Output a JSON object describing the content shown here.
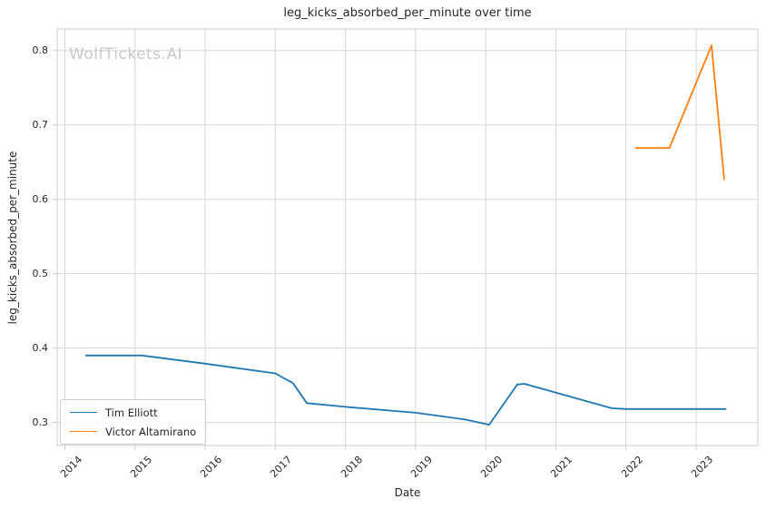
{
  "watermark": "WolfTickets.AI",
  "chart_data": {
    "type": "line",
    "title": "leg_kicks_absorbed_per_minute over time",
    "xlabel": "Date",
    "ylabel": "leg_kicks_absorbed_per_minute",
    "grid": true,
    "legend_position": "lower left",
    "xlim": [
      2013.89,
      2023.88
    ],
    "ylim": [
      0.269,
      0.829
    ],
    "x_ticks": [
      2014,
      2015,
      2016,
      2017,
      2018,
      2019,
      2020,
      2021,
      2022,
      2023
    ],
    "x_tick_labels": [
      "2014",
      "2015",
      "2016",
      "2017",
      "2018",
      "2019",
      "2020",
      "2021",
      "2022",
      "2023"
    ],
    "y_ticks": [
      0.3,
      0.4,
      0.5,
      0.6,
      0.7,
      0.8
    ],
    "y_tick_labels": [
      "0.3",
      "0.4",
      "0.5",
      "0.6",
      "0.7",
      "0.8"
    ],
    "series": [
      {
        "name": "Tim Elliott",
        "color": "#1f77b4",
        "points": [
          [
            2014.3,
            0.39
          ],
          [
            2015.1,
            0.39
          ],
          [
            2016.0,
            0.379
          ],
          [
            2017.0,
            0.366
          ],
          [
            2017.25,
            0.353
          ],
          [
            2017.45,
            0.326
          ],
          [
            2018.0,
            0.321
          ],
          [
            2019.0,
            0.313
          ],
          [
            2019.7,
            0.304
          ],
          [
            2020.05,
            0.297
          ],
          [
            2020.45,
            0.351
          ],
          [
            2020.55,
            0.352
          ],
          [
            2021.8,
            0.319
          ],
          [
            2022.0,
            0.318
          ],
          [
            2023.42,
            0.318
          ]
        ]
      },
      {
        "name": "Victor Altamirano",
        "color": "#ff7f0e",
        "points": [
          [
            2022.14,
            0.669
          ],
          [
            2022.62,
            0.669
          ],
          [
            2023.22,
            0.807
          ],
          [
            2023.4,
            0.627
          ]
        ]
      }
    ],
    "colors": {
      "grid": "#d7d7d7",
      "spine": "#cccccc",
      "tick": "#cccccc",
      "text": "#262626",
      "watermark": "#c9c9c9"
    }
  }
}
